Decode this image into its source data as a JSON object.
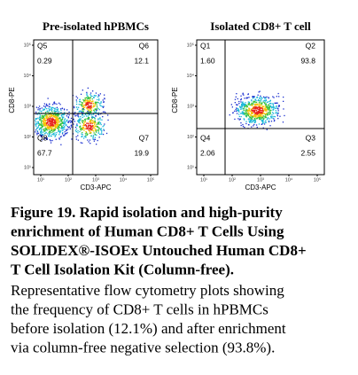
{
  "panels": [
    {
      "title": "Pre-isolated hPBMCs",
      "x_label": "CD3-APC",
      "y_label": "CD8-PE",
      "x_ticks": [
        "10¹",
        "10²",
        "10³",
        "10⁴",
        "10⁵"
      ],
      "y_ticks": [
        "10⁵",
        "10⁴",
        "10³",
        "10²",
        "10¹"
      ],
      "quadrants": [
        {
          "name": "Q5",
          "value": "0.29"
        },
        {
          "name": "Q6",
          "value": "12.1"
        },
        {
          "name": "Q8",
          "value": "67.7"
        },
        {
          "name": "Q7",
          "value": "19.9"
        }
      ]
    },
    {
      "title": "Isolated CD8+ T cell",
      "x_label": "CD3-APC",
      "y_label": "CD8-PE",
      "x_ticks": [
        "10¹",
        "10²",
        "10³",
        "10⁴",
        "10⁵"
      ],
      "y_ticks": [
        "10⁵",
        "10⁴",
        "10³",
        "10²",
        "10¹"
      ],
      "quadrants": [
        {
          "name": "Q1",
          "value": "1.60"
        },
        {
          "name": "Q2",
          "value": "93.8"
        },
        {
          "name": "Q4",
          "value": "2.06"
        },
        {
          "name": "Q3",
          "value": "2.55"
        }
      ]
    }
  ],
  "caption": {
    "title_lines": [
      "Figure 19. Rapid isolation and high-purity",
      "enrichment of Human CD8+ T Cells Using",
      "SOLIDEX®-ISOEx Untouched Human CD8+",
      "T Cell Isolation Kit (Column-free)."
    ],
    "body_lines": [
      "Representative flow cytometry plots showing",
      "the frequency of CD8+ T cells in hPBMCs",
      "before isolation (12.1%) and after enrichment",
      "via column-free negative selection (93.8%)."
    ]
  }
}
